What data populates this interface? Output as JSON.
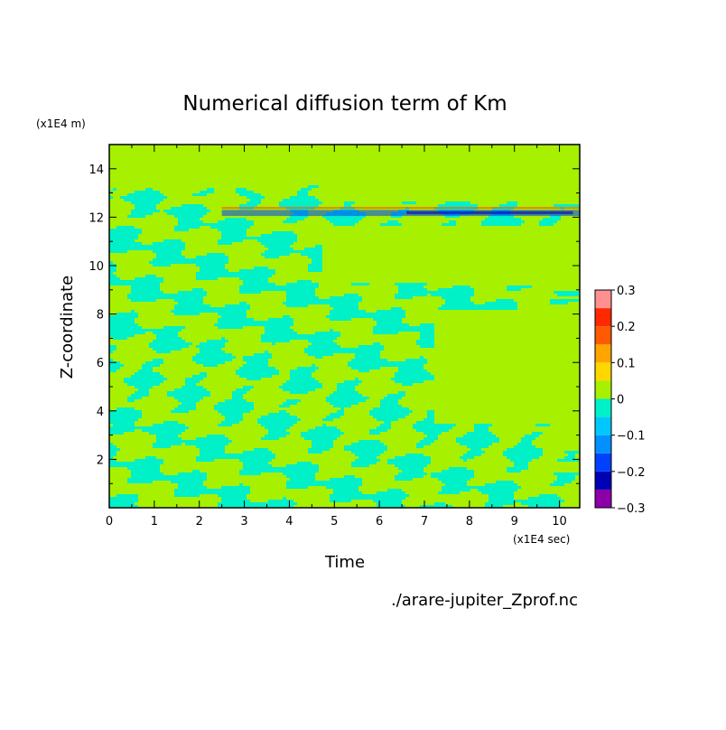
{
  "chart_data": {
    "type": "heatmap",
    "title": "Numerical diffusion term of Km",
    "xlabel": "Time",
    "ylabel": "Z-coordinate",
    "x_unit_label": "(x1E4 sec)",
    "y_unit_label": "(x1E4 m)",
    "source_file": "./arare-jupiter_Zprof.nc",
    "xlim": [
      0,
      10.45
    ],
    "ylim": [
      0,
      15
    ],
    "x_ticks": [
      "0",
      "1",
      "2",
      "3",
      "4",
      "5",
      "6",
      "7",
      "8",
      "9",
      "10"
    ],
    "y_ticks": [
      "2",
      "4",
      "6",
      "8",
      "10",
      "12",
      "14"
    ],
    "colorbar": {
      "ticks": [
        "0.3",
        "0.2",
        "0.1",
        "0",
        "-0.1",
        "-0.2",
        "-0.3"
      ],
      "levels": [
        -0.3,
        -0.25,
        -0.2,
        -0.15,
        -0.1,
        -0.05,
        0,
        0.05,
        0.1,
        0.15,
        0.2,
        0.25,
        0.3
      ],
      "colors": [
        "#8b00a8",
        "#0000b4",
        "#0040ff",
        "#0090ff",
        "#00c8ff",
        "#00f0c8",
        "#a6f000",
        "#ffd700",
        "#ffa500",
        "#ff5a00",
        "#ff2800",
        "#ff9090"
      ]
    },
    "background_color": "#a6f000",
    "dominant_colors": {
      "zero": "#a6f000",
      "small_negative": "#00f0c8"
    }
  }
}
